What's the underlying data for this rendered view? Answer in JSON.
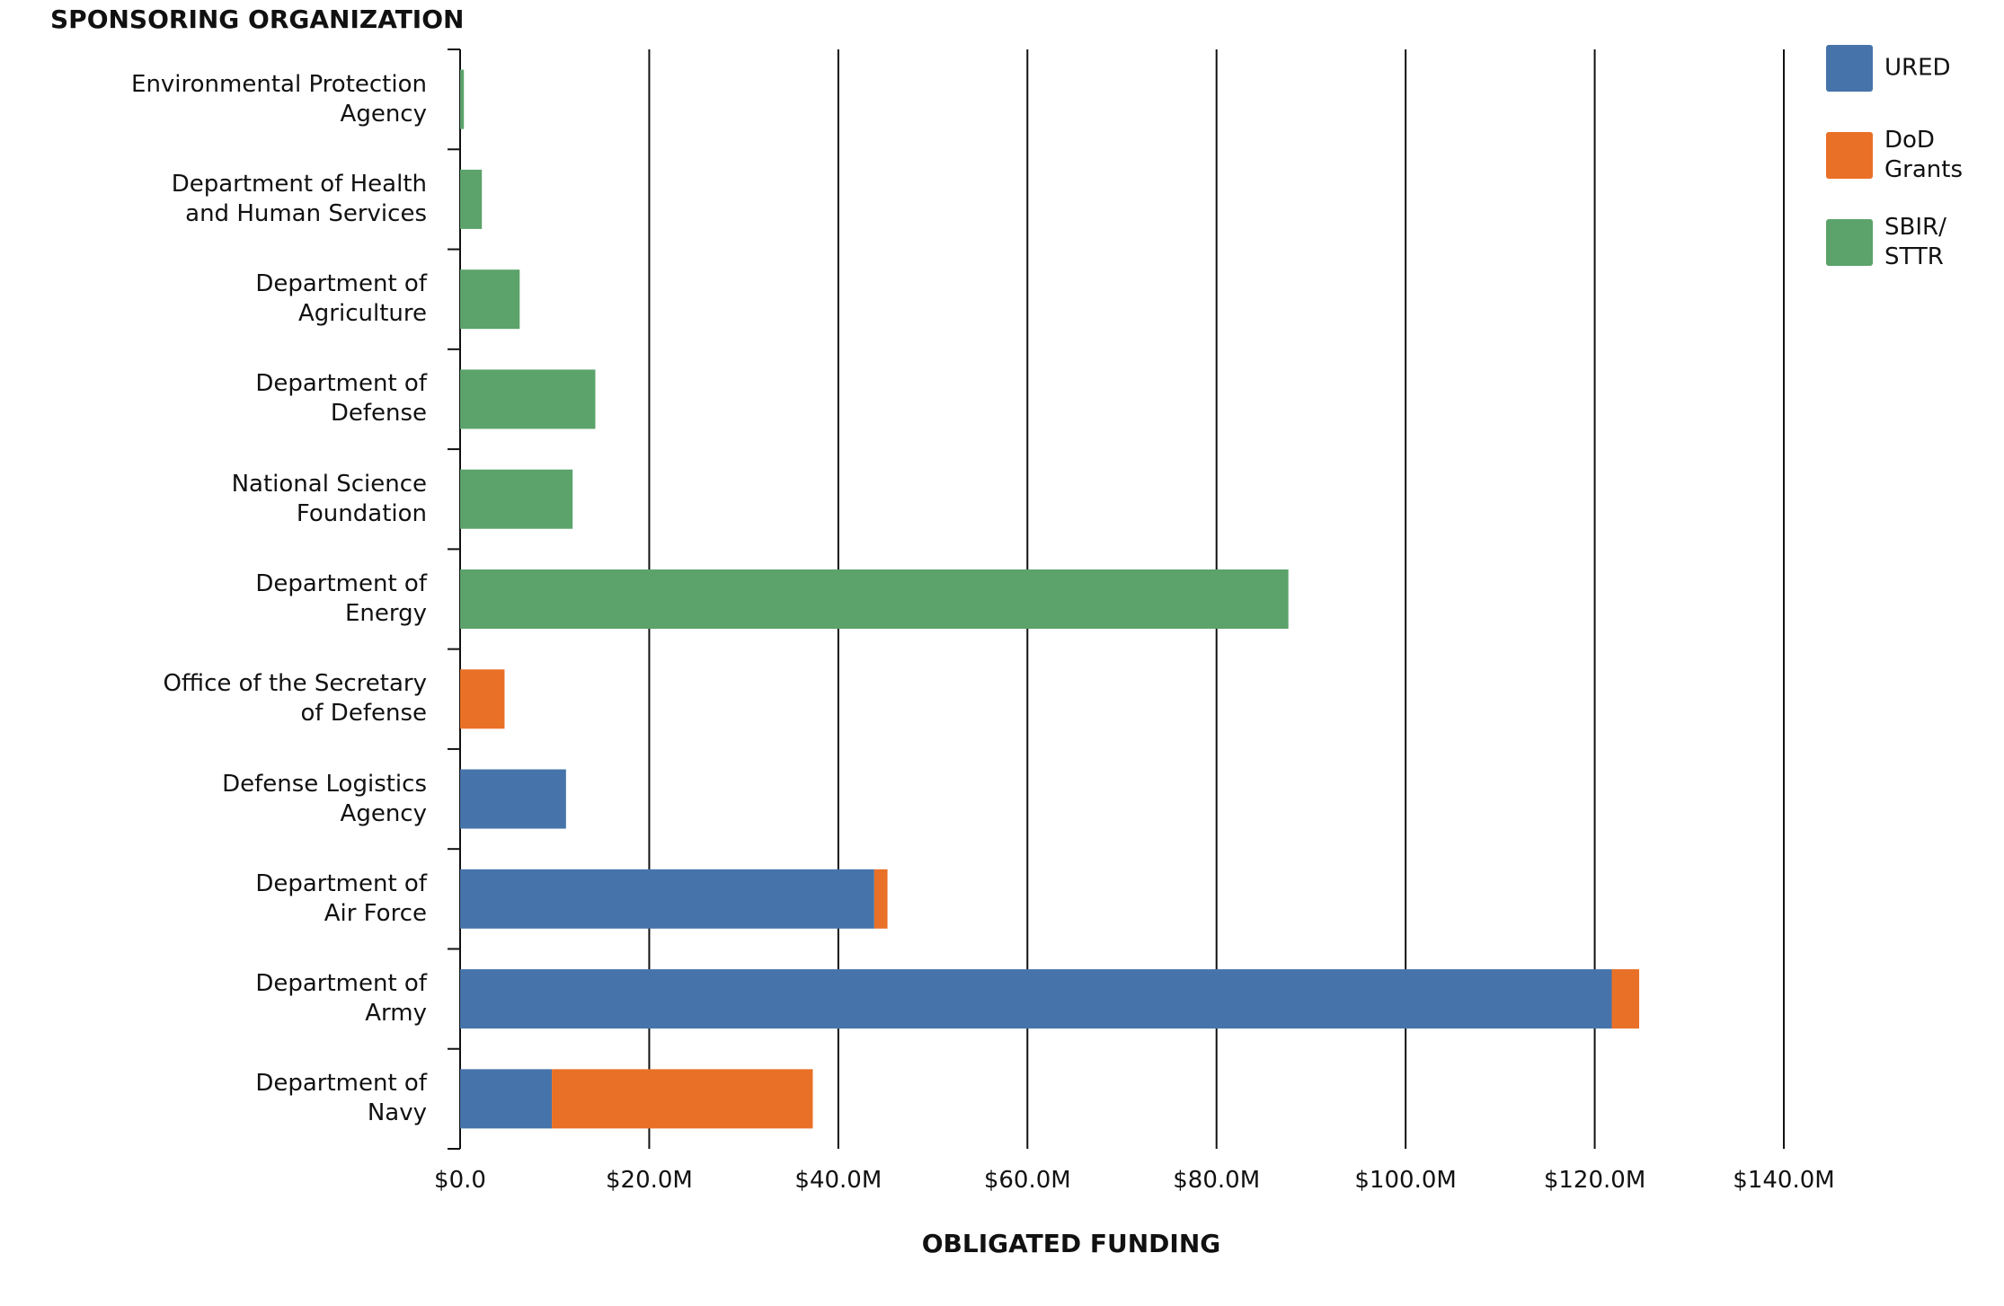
{
  "chart_data": {
    "type": "bar",
    "ylabel": "SPONSORING ORGANIZATION",
    "xlabel": "OBLIGATED FUNDING",
    "categories": [
      "Environmental Protection\nAgency",
      "Department of Health\nand Human Services",
      "Department of\nAgriculture",
      "Department of\nDefense",
      "National Science\nFoundation",
      "Department of\nEnergy",
      "Office of the Secretary\nof Defense",
      "Defense Logistics\nAgency",
      "Department of\nAir Force",
      "Department of\nArmy",
      "Department of\nNavy"
    ],
    "series": [
      {
        "name": "URED",
        "color": "#4674aa",
        "values": [
          null,
          null,
          null,
          null,
          null,
          null,
          null,
          11200000,
          43800000,
          121800000,
          9700000
        ]
      },
      {
        "name": "DoD\nGrants",
        "color": "#e97027",
        "values": [
          null,
          null,
          null,
          null,
          null,
          null,
          4700000,
          null,
          1400000,
          2900000,
          27600000
        ]
      },
      {
        "name": "SBIR/\nSTTR",
        "color": "#5ba36b",
        "values": [
          400000,
          2300000,
          6300000,
          14300000,
          11900000,
          87600000,
          null,
          null,
          null,
          null,
          null
        ]
      }
    ],
    "xlim": [
      0,
      140000000
    ],
    "xticks": [
      {
        "value": 0,
        "label": "$0.0"
      },
      {
        "value": 20000000,
        "label": "$20.0M"
      },
      {
        "value": 40000000,
        "label": "$40.0M"
      },
      {
        "value": 60000000,
        "label": "$60.0M"
      },
      {
        "value": 80000000,
        "label": "$80.0M"
      },
      {
        "value": 100000000,
        "label": "$100.0M"
      },
      {
        "value": 120000000,
        "label": "$120.0M"
      },
      {
        "value": 140000000,
        "label": "$140.0M"
      }
    ],
    "grid": true
  }
}
